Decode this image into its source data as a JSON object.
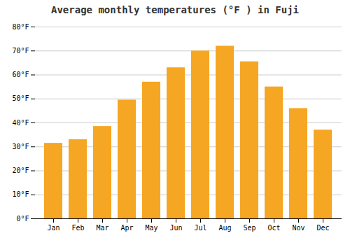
{
  "chart_data": {
    "type": "bar",
    "title": "Average monthly temperatures (°F ) in Fuji",
    "categories": [
      "Jan",
      "Feb",
      "Mar",
      "Apr",
      "May",
      "Jun",
      "Jul",
      "Aug",
      "Sep",
      "Oct",
      "Nov",
      "Dec"
    ],
    "values": [
      31.5,
      33.0,
      38.5,
      49.5,
      57.0,
      63.0,
      70.0,
      72.0,
      65.5,
      55.0,
      46.0,
      37.0
    ],
    "color": "#F5A623",
    "ylim": [
      0,
      80
    ],
    "yticks": [
      {
        "value": 0,
        "label": "0°F"
      },
      {
        "value": 10,
        "label": "10°F"
      },
      {
        "value": 20,
        "label": "20°F"
      },
      {
        "value": 30,
        "label": "30°F"
      },
      {
        "value": 40,
        "label": "40°F"
      },
      {
        "value": 50,
        "label": "50°F"
      },
      {
        "value": 60,
        "label": "60°F"
      },
      {
        "value": 70,
        "label": "70°F"
      },
      {
        "value": 80,
        "label": "80°F"
      }
    ],
    "grid": true
  }
}
